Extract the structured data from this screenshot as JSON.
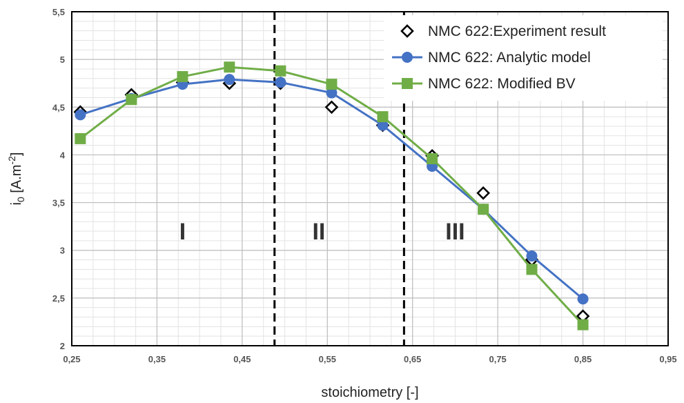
{
  "chart_data": {
    "type": "line",
    "xlabel": "stoichiometry [-]",
    "ylabel": {
      "base": "i",
      "sub": "0",
      "unit_open": " [A.m",
      "sup": "-2",
      "unit_close": "]"
    },
    "xlim": [
      0.25,
      0.95
    ],
    "ylim": [
      2,
      5.5
    ],
    "x_major_ticks": [
      0.25,
      0.35,
      0.45,
      0.55,
      0.65,
      0.75,
      0.85,
      0.95
    ],
    "x_tick_labels": [
      "0,25",
      "0,35",
      "0,45",
      "0,55",
      "0,65",
      "0,75",
      "0,85",
      "0,95"
    ],
    "x_minor_step": 0.025,
    "y_major_ticks": [
      2,
      2.5,
      3,
      3.5,
      4,
      4.5,
      5,
      5.5
    ],
    "y_tick_labels": [
      "2",
      "2,5",
      "3",
      "3,5",
      "4",
      "4,5",
      "5",
      "5,5"
    ],
    "y_minor_step": 0.1,
    "grid": true,
    "legend_position": "top-right",
    "series": [
      {
        "name": "NMC 622:Experiment result",
        "style": "marker-only",
        "marker": "diamond-open",
        "color": "#000000",
        "x": [
          0.26,
          0.32,
          0.38,
          0.435,
          0.495,
          0.555,
          0.615,
          0.673,
          0.733,
          0.79,
          0.85
        ],
        "y": [
          4.45,
          4.63,
          4.76,
          4.75,
          4.75,
          4.5,
          4.31,
          3.99,
          3.6,
          2.9,
          2.31
        ]
      },
      {
        "name": "NMC 622: Analytic model",
        "style": "line-marker",
        "marker": "circle",
        "color": "#4472C4",
        "x": [
          0.26,
          0.32,
          0.38,
          0.435,
          0.495,
          0.555,
          0.615,
          0.673,
          0.733,
          0.79,
          0.85
        ],
        "y": [
          4.42,
          4.59,
          4.74,
          4.79,
          4.76,
          4.65,
          4.31,
          3.88,
          3.43,
          2.94,
          2.49
        ]
      },
      {
        "name": "NMC 622: Modified BV",
        "style": "line-marker",
        "marker": "square",
        "color": "#70AD47",
        "x": [
          0.26,
          0.32,
          0.38,
          0.435,
          0.495,
          0.555,
          0.615,
          0.673,
          0.733,
          0.79,
          0.85
        ],
        "y": [
          4.17,
          4.58,
          4.82,
          4.92,
          4.88,
          4.74,
          4.4,
          3.96,
          3.43,
          2.8,
          2.22
        ]
      }
    ],
    "vertical_lines": [
      0.488,
      0.64
    ],
    "region_labels": [
      {
        "text": "I",
        "x": 0.38,
        "y": 3.2
      },
      {
        "text": "II",
        "x": 0.54,
        "y": 3.2
      },
      {
        "text": "III",
        "x": 0.7,
        "y": 3.2
      }
    ]
  }
}
